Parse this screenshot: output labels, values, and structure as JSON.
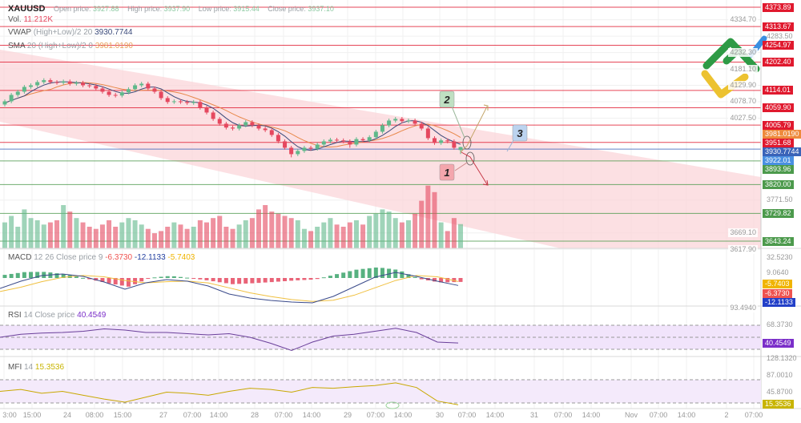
{
  "header": {
    "symbol": "XAUUSD",
    "open_label": "Open price:",
    "open_value": "3927.88",
    "high_label": "High price:",
    "high_value": "3937.90",
    "low_label": "Low price:",
    "low_value": "3915.44",
    "close_label": "Close price:",
    "close_value": "3937.10",
    "vol_label": "Vol.",
    "vol_value": "11.212K"
  },
  "indicators": {
    "vwap": {
      "name": "VWAP",
      "params": "(High+Low)/2 20",
      "value": "3930.7744",
      "color": "#3b4a7a"
    },
    "sma": {
      "name": "SMA",
      "params": "20 (High+Low)/2 0",
      "value": "3981.0190",
      "color": "#e8884a"
    },
    "macd": {
      "name": "MACD",
      "params": "12 26 Close price 9",
      "hist": "-6.3730",
      "macd": "-12.1133",
      "signal": "-5.7403"
    },
    "rsi": {
      "name": "RSI",
      "params": "14 Close price",
      "value": "40.4549"
    },
    "mfi": {
      "name": "MFI",
      "params": "14",
      "value": "15.3536"
    }
  },
  "levels": [
    {
      "price": 4373.89,
      "label": "4373.89",
      "color": "#e0192e"
    },
    {
      "price": 4313.67,
      "label": "4313.67",
      "color": "#e0192e"
    },
    {
      "price": 4254.97,
      "label": "4254.97",
      "color": "#e0192e"
    },
    {
      "price": 4202.4,
      "label": "4202.40",
      "color": "#e0192e"
    },
    {
      "price": 4114.01,
      "label": "4114.01",
      "color": "#e0192e"
    },
    {
      "price": 4059.9,
      "label": "4059.90",
      "color": "#e0192e"
    },
    {
      "price": 4005.79,
      "label": "4005.79",
      "color": "#e0192e"
    },
    {
      "price": 3981.019,
      "label": "3981.0190",
      "color": "#ee8a3c",
      "line": false
    },
    {
      "price": 3951.68,
      "label": "3951.68",
      "color": "#e0192e"
    },
    {
      "price": 3930.7744,
      "label": "3930.7744",
      "color": "#3a63b8"
    },
    {
      "price": 3922.01,
      "label": "3922.01",
      "color": "#4a90e2",
      "line": false
    },
    {
      "price": 3893.96,
      "label": "3893.96",
      "color": "#4c9a4c"
    },
    {
      "price": 3820.0,
      "label": "3820.00",
      "color": "#4c9a4c"
    },
    {
      "price": 3729.82,
      "label": "3729.82",
      "color": "#4c9a4c"
    },
    {
      "price": 3643.24,
      "label": "3643.24",
      "color": "#4c9a4c"
    }
  ],
  "price_axis": [
    "4334.70",
    "4283.50",
    "4232.30",
    "4181.10",
    "4129.90",
    "4078.70",
    "4027.50",
    "3771.50",
    "3669.10",
    "3617.90"
  ],
  "indicator_axis": {
    "macd": [
      "32.5230",
      "9.0640"
    ],
    "rsi": [
      "93.4940",
      "68.3730"
    ],
    "mfi": [
      "128.1320",
      "87.0010",
      "45.8700"
    ]
  },
  "indicator_badges": [
    {
      "label": "-5.7403",
      "color": "#f0b400"
    },
    {
      "label": "-6.3730",
      "color": "#ef5350"
    },
    {
      "label": "-12.1133",
      "color": "#2340c8"
    },
    {
      "label": "40.4549",
      "color": "#7b2fc9"
    },
    {
      "label": "15.3536",
      "color": "#c8b400"
    }
  ],
  "x_axis": [
    "3:00",
    "15:00",
    "24",
    "08:00",
    "15:00",
    "27",
    "07:00",
    "14:00",
    "28",
    "07:00",
    "14:00",
    "29",
    "07:00",
    "14:00",
    "30",
    "07:00",
    "14:00",
    "31",
    "07:00",
    "14:00",
    "Nov",
    "07:00",
    "14:00",
    "2",
    "07:00"
  ],
  "annotations": [
    {
      "label": "1",
      "color": "#f4a6ad",
      "direction": "down"
    },
    {
      "label": "2",
      "color": "#bfe0c2",
      "direction": "up"
    },
    {
      "label": "3",
      "color": "#bcd3ef"
    }
  ],
  "colors": {
    "up": "#5fb88a",
    "down": "#e5485f",
    "channel": "#fbd6da",
    "rsi_band": "#f1e4fb",
    "mfi_band": "#f4eafb"
  },
  "chart_data": {
    "type": "candlestick",
    "symbol": "XAUUSD",
    "open": [
      4070,
      4080,
      4100,
      4110,
      4125,
      4130,
      4140,
      4146,
      4140,
      4138,
      4142,
      4135,
      4138,
      4130,
      4128,
      4120,
      4110,
      4100,
      4098,
      4108,
      4118,
      4130,
      4135,
      4120,
      4110,
      4090,
      4078,
      4080,
      4078,
      4075,
      4078,
      4060,
      4045,
      4025,
      4010,
      3998,
      3995,
      4005,
      4015,
      4005,
      3995,
      3990,
      3975,
      3955,
      3935,
      3915,
      3925,
      3935,
      3932,
      3945,
      3955,
      3960,
      3958,
      3955,
      3945,
      3962,
      3958,
      3968,
      3985,
      4005,
      4020,
      4025,
      4018,
      4020,
      4010,
      3995,
      3965,
      3950,
      3958,
      3955,
      3927.88
    ],
    "high": [
      4086,
      4106,
      4116,
      4131,
      4136,
      4146,
      4152,
      4152,
      4146,
      4148,
      4148,
      4144,
      4144,
      4136,
      4134,
      4126,
      4116,
      4106,
      4114,
      4124,
      4136,
      4141,
      4141,
      4126,
      4116,
      4096,
      4086,
      4086,
      4084,
      4084,
      4084,
      4066,
      4051,
      4031,
      4016,
      4004,
      4011,
      4021,
      4021,
      4011,
      4001,
      3996,
      3981,
      3961,
      3941,
      3931,
      3941,
      3941,
      3951,
      3961,
      3966,
      3966,
      3964,
      3961,
      3968,
      3968,
      3974,
      3991,
      4011,
      4026,
      4031,
      4031,
      4026,
      4026,
      4016,
      4001,
      3971,
      3964,
      3964,
      3961,
      3937.9
    ],
    "low": [
      4064,
      4074,
      4094,
      4104,
      4119,
      4124,
      4134,
      4134,
      4132,
      4132,
      4129,
      4129,
      4124,
      4122,
      4114,
      4104,
      4094,
      4092,
      4092,
      4102,
      4112,
      4124,
      4114,
      4104,
      4084,
      4072,
      4072,
      4072,
      4069,
      4069,
      4054,
      4039,
      4019,
      4004,
      3992,
      3989,
      3989,
      3999,
      3999,
      3989,
      3984,
      3969,
      3949,
      3929,
      3905,
      3909,
      3919,
      3926,
      3926,
      3939,
      3949,
      3952,
      3949,
      3935,
      3939,
      3952,
      3952,
      3962,
      3979,
      3999,
      4014,
      4012,
      4012,
      4004,
      3989,
      3959,
      3944,
      3944,
      3949,
      3929,
      3915.44
    ],
    "close": [
      4080,
      4100,
      4110,
      4125,
      4130,
      4140,
      4146,
      4140,
      4138,
      4142,
      4135,
      4138,
      4130,
      4128,
      4120,
      4110,
      4100,
      4098,
      4108,
      4118,
      4130,
      4135,
      4120,
      4110,
      4090,
      4078,
      4080,
      4078,
      4075,
      4078,
      4060,
      4045,
      4025,
      4010,
      3998,
      3995,
      4005,
      4015,
      4005,
      3995,
      3990,
      3975,
      3955,
      3935,
      3915,
      3925,
      3935,
      3932,
      3945,
      3955,
      3960,
      3958,
      3955,
      3945,
      3962,
      3958,
      3968,
      3985,
      4005,
      4020,
      4025,
      4018,
      4020,
      4010,
      3995,
      3965,
      3950,
      3958,
      3955,
      3935,
      3937.1
    ],
    "volume_k": [
      12,
      15,
      10,
      18,
      14,
      13,
      11,
      12,
      13,
      20,
      17,
      14,
      12,
      10,
      9,
      11,
      13,
      10,
      12,
      14,
      13,
      11,
      9,
      7,
      8,
      10,
      12,
      11,
      9,
      10,
      13,
      12,
      14,
      15,
      10,
      9,
      11,
      13,
      14,
      18,
      20,
      17,
      16,
      15,
      14,
      13,
      9,
      8,
      10,
      12,
      14,
      11,
      10,
      12,
      13,
      11,
      15,
      16,
      18,
      17,
      14,
      12,
      13,
      16,
      22,
      29,
      26,
      12,
      8,
      14,
      11.212
    ],
    "macd": [
      -16.9,
      -5.2,
      3.9,
      6.5,
      2.6,
      -6.5,
      -18.2,
      -7.8,
      -2.6,
      -5.2,
      -13,
      -26,
      -32.5,
      -36.4,
      -39,
      -40.3,
      -29.9,
      -14.3,
      1.3,
      9.1,
      2.6,
      -5.2,
      -12.1133
    ],
    "signal": [
      -22,
      -15,
      -6,
      1,
      4,
      2,
      -4,
      -8,
      -6,
      -5,
      -8,
      -16,
      -24,
      -30,
      -35,
      -38,
      -36,
      -28,
      -16,
      -4,
      4,
      2,
      -5.7403
    ],
    "rsi": [
      50,
      55,
      57,
      58,
      60,
      64,
      62,
      58,
      58,
      56,
      54,
      56,
      50,
      40,
      28,
      42,
      52,
      55,
      60,
      65,
      58,
      42,
      40.4549
    ],
    "rsi_bands": [
      70,
      50,
      30
    ],
    "mfi": [
      50,
      55,
      45,
      50,
      40,
      30,
      22,
      35,
      48,
      45,
      40,
      50,
      58,
      55,
      48,
      60,
      58,
      62,
      65,
      72,
      60,
      25,
      15.3536
    ],
    "mfi_bands": [
      80,
      20
    ],
    "price_range": [
      3617.9,
      4395
    ]
  }
}
